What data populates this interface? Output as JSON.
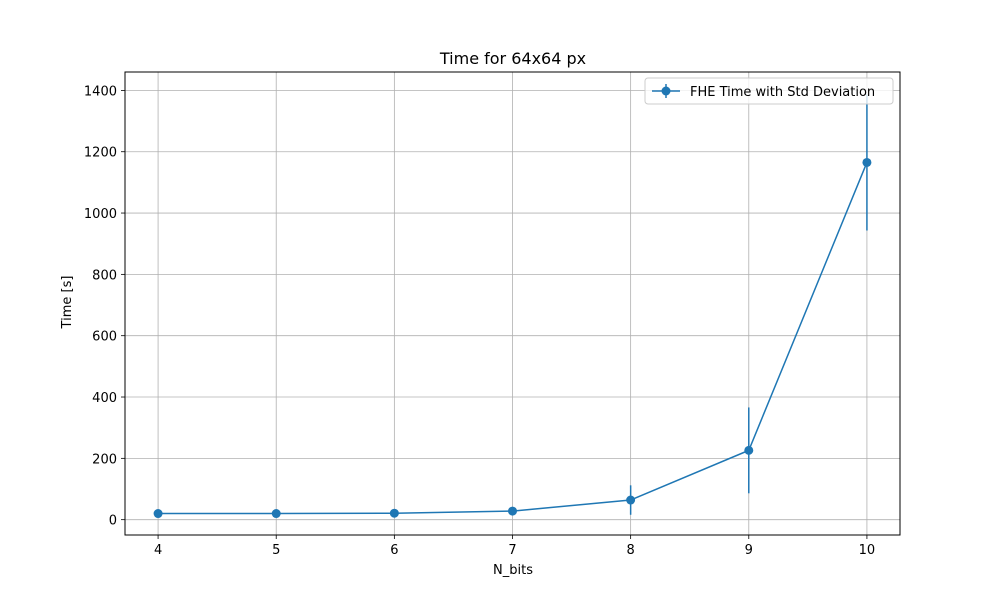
{
  "chart_data": {
    "type": "line",
    "title": "Time for 64x64 px",
    "xlabel": "N_bits",
    "ylabel": "Time [s]",
    "x": [
      4,
      5,
      6,
      7,
      8,
      9,
      10
    ],
    "series": [
      {
        "name": "FHE Time with Std Deviation",
        "color": "#1f77b4",
        "values": [
          20,
          20,
          21,
          28,
          64,
          226,
          1165
        ],
        "std": [
          3,
          3,
          3,
          5,
          48,
          140,
          222
        ]
      }
    ],
    "xlim": [
      3.72,
      10.28
    ],
    "ylim": [
      -50,
      1460
    ],
    "xticks": [
      4,
      5,
      6,
      7,
      8,
      9,
      10
    ],
    "yticks": [
      0,
      200,
      400,
      600,
      800,
      1000,
      1200,
      1400
    ],
    "grid": true,
    "legend_position": "top-right"
  }
}
